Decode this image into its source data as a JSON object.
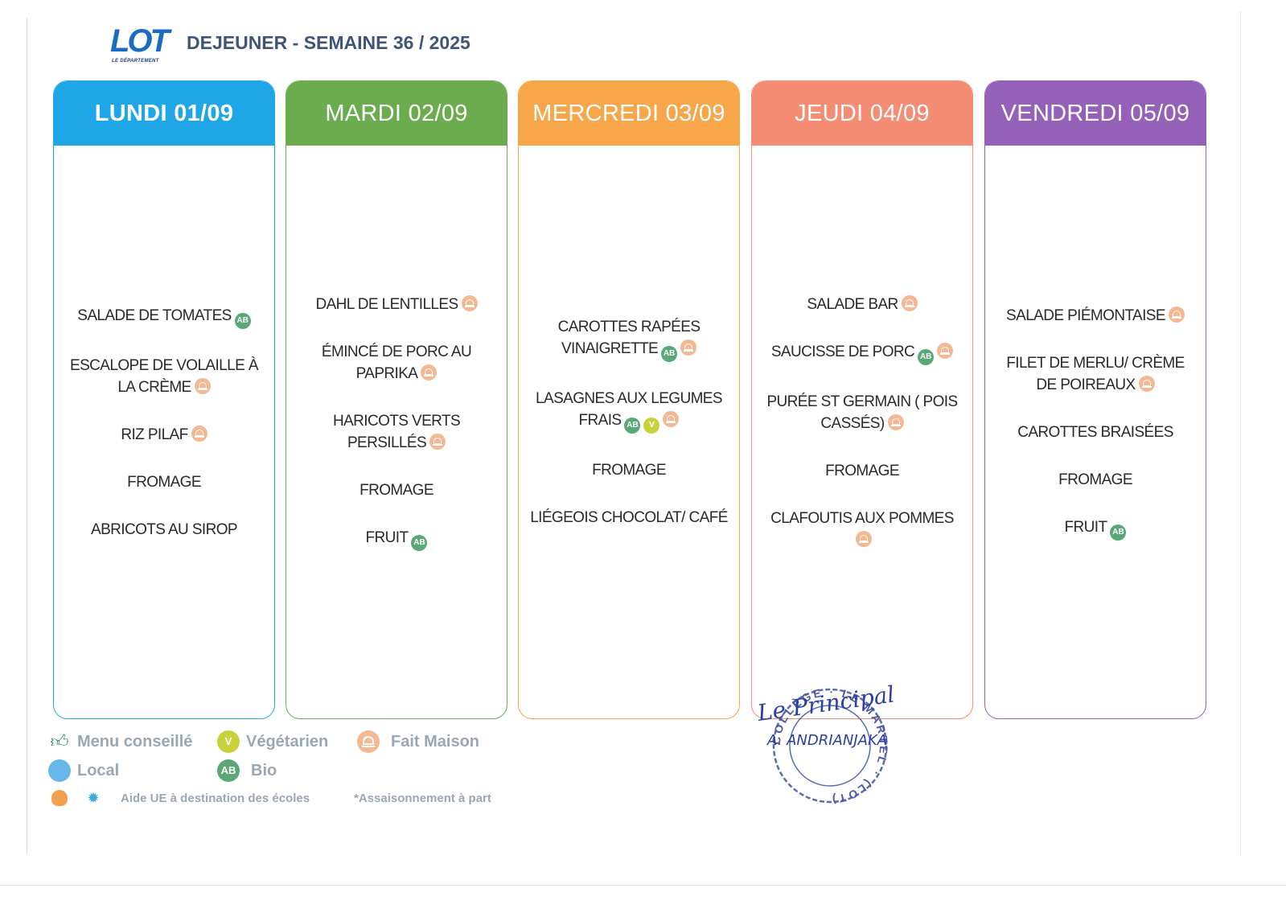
{
  "header": {
    "logo_text": "LOT",
    "logo_subtitle": "LE DÉPARTEMENT",
    "title": "DEJEUNER - SEMAINE 36 / 2025"
  },
  "days": [
    {
      "label": "LUNDI 01/09",
      "color": "#1ea6e6",
      "dishes": [
        {
          "text": "SALADE DE TOMATES",
          "badges": [
            "bio"
          ]
        },
        {
          "text": "ESCALOPE DE VOLAILLE À LA CRÈME",
          "badges": [
            "fait-maison"
          ]
        },
        {
          "text": "RIZ PILAF",
          "badges": [
            "fait-maison"
          ]
        },
        {
          "text": "FROMAGE",
          "badges": []
        },
        {
          "text": "ABRICOTS AU SIROP",
          "badges": []
        }
      ]
    },
    {
      "label": "MARDI 02/09",
      "color": "#6aac4e",
      "dishes": [
        {
          "text": "DAHL DE LENTILLES",
          "badges": [
            "fait-maison"
          ]
        },
        {
          "text": "ÉMINCÉ DE PORC AU PAPRIKA",
          "badges": [
            "fait-maison"
          ]
        },
        {
          "text": "HARICOTS VERTS PERSILLÉS",
          "badges": [
            "fait-maison"
          ]
        },
        {
          "text": "FROMAGE",
          "badges": []
        },
        {
          "text": "FRUIT",
          "badges": [
            "bio"
          ]
        }
      ]
    },
    {
      "label": "MERCREDI 03/09",
      "color": "#f7a64a",
      "dishes": [
        {
          "text": "CAROTTES RAPÉES VINAIGRETTE",
          "badges": [
            "bio",
            "fait-maison"
          ]
        },
        {
          "text": "LASAGNES AUX LEGUMES FRAIS",
          "badges": [
            "bio",
            "vegetarien",
            "fait-maison"
          ]
        },
        {
          "text": "FROMAGE",
          "badges": []
        },
        {
          "text": "LIÉGEOIS CHOCOLAT/ CAFÉ",
          "badges": []
        }
      ]
    },
    {
      "label": "JEUDI 04/09",
      "color": "#f58d74",
      "dishes": [
        {
          "text": "SALADE BAR",
          "badges": [
            "fait-maison"
          ]
        },
        {
          "text": "SAUCISSE DE PORC",
          "badges": [
            "bio",
            "fait-maison"
          ]
        },
        {
          "text": "PURÉE ST GERMAIN ( POIS CASSÉS)",
          "badges": [
            "fait-maison"
          ]
        },
        {
          "text": "FROMAGE",
          "badges": []
        },
        {
          "text": "CLAFOUTIS AUX POMMES",
          "badges": [
            "fait-maison"
          ]
        }
      ]
    },
    {
      "label": "VENDREDI 05/09",
      "color": "#9560b8",
      "dishes": [
        {
          "text": "SALADE PIÉMONTAISE",
          "badges": [
            "fait-maison"
          ]
        },
        {
          "text": "FILET DE MERLU/ CRÈME DE POIREAUX",
          "badges": [
            "fait-maison"
          ]
        },
        {
          "text": "CAROTTES BRAISÉES",
          "badges": []
        },
        {
          "text": "FROMAGE",
          "badges": []
        },
        {
          "text": "FRUIT",
          "badges": [
            "bio"
          ]
        }
      ]
    }
  ],
  "legend": {
    "menu_conseille": "Menu conseillé",
    "vegetarien": "Végétarien",
    "fait_maison": "Fait Maison",
    "local": "Local",
    "bio": "Bio",
    "aide_ue": "Aide UE à destination des écoles",
    "assaisonnement": "*Assaisonnement à part"
  },
  "badge_labels": {
    "bio": "AB",
    "vegetarien": "V"
  },
  "stamp": {
    "signature": "Le Principal",
    "name": "A. ANDRIANJAKA",
    "seal_text": "COLLÈGE · LE MARTEL · (LOT)"
  }
}
